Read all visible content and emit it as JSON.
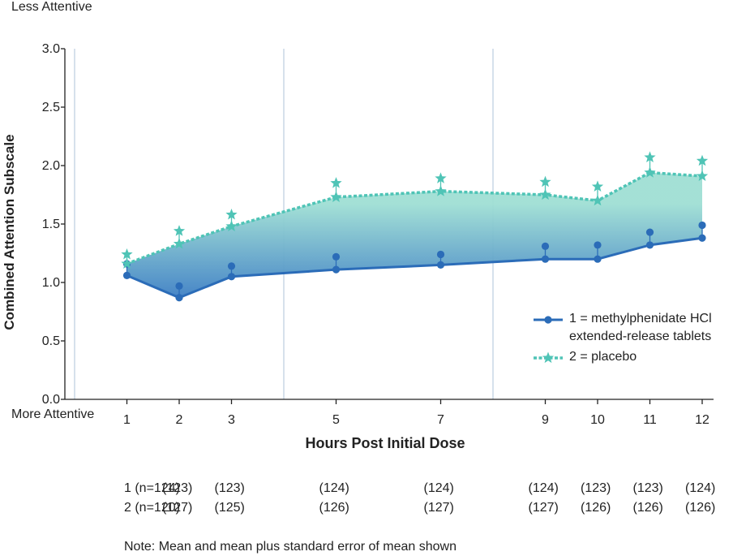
{
  "chart_data": {
    "type": "line",
    "ylabel": "Combined Attention Subscale",
    "xlabel": "Hours Post Initial Dose",
    "y_top_label": "Less Attentive",
    "y_bottom_label": "More Attentive",
    "ylim": [
      0,
      3.0
    ],
    "yticks": [
      "0.0",
      "0.5",
      "1.0",
      "1.5",
      "2.0",
      "2.5",
      "3.0"
    ],
    "x": [
      1,
      2,
      3,
      5,
      7,
      9,
      10,
      11,
      12
    ],
    "xtick_labels": [
      "1",
      "2",
      "3",
      "5",
      "7",
      "9",
      "10",
      "11",
      "12"
    ],
    "vertical_reference_lines": [
      0,
      4,
      8
    ],
    "series": [
      {
        "name": "1 = methylphenidate HCl extended-release tablets",
        "legend_lines": [
          "1 = methylphenidate HCl",
          "extended-release tablets"
        ],
        "color": "#2b6cb8",
        "marker": "circle",
        "mean": [
          1.06,
          0.87,
          1.05,
          1.11,
          1.15,
          1.2,
          1.2,
          1.32,
          1.38
        ],
        "mean_plus_sem": [
          1.16,
          0.97,
          1.14,
          1.22,
          1.24,
          1.31,
          1.32,
          1.43,
          1.49
        ]
      },
      {
        "name": "2 = placebo",
        "legend_lines": [
          "2 = placebo"
        ],
        "color": "#4fc4b6",
        "marker": "star",
        "mean": [
          1.16,
          1.33,
          1.48,
          1.73,
          1.78,
          1.75,
          1.7,
          1.94,
          1.91
        ],
        "mean_plus_sem": [
          1.24,
          1.44,
          1.58,
          1.85,
          1.89,
          1.86,
          1.82,
          2.07,
          2.04
        ]
      }
    ],
    "fill_between": {
      "from": "#3d7fc4",
      "to": "#9fdfd4"
    },
    "sample_sizes": {
      "row1": [
        "1 (n=124)",
        "(123)",
        "(123)",
        "(124)",
        "(124)",
        "(124)",
        "(123)",
        "(123)",
        "(124)"
      ],
      "row2": [
        "2 (n=120)",
        "(127)",
        "(125)",
        "(126)",
        "(127)",
        "(127)",
        "(126)",
        "(126)",
        "(126)"
      ]
    },
    "note": "Note: Mean and mean plus standard error of mean shown",
    "grid": false,
    "legend_position": "right"
  }
}
